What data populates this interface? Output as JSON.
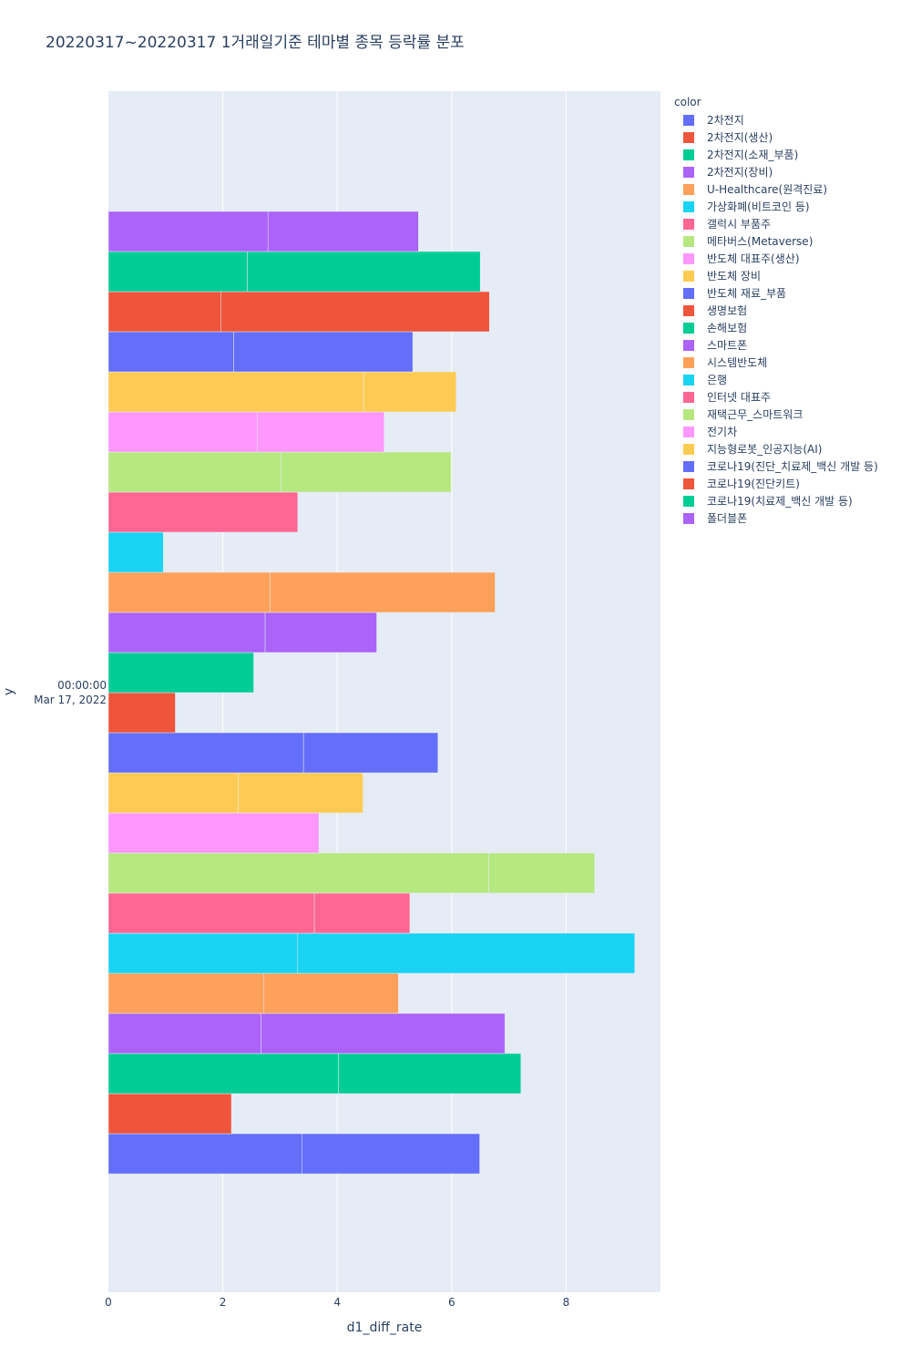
{
  "chart_data": {
    "type": "bar",
    "orientation": "horizontal",
    "barmode": "group",
    "title": "20220317~20220317 1거래일기준 테마별 종목 등락률 분포",
    "xlabel": "d1_diff_rate",
    "ylabel": "y",
    "xlim": [
      0,
      9.65
    ],
    "x_ticks": [
      "0",
      "2",
      "4",
      "6",
      "8"
    ],
    "x_tick_values": [
      0,
      2,
      4,
      6,
      8
    ],
    "y_category": "00:00:00\nMar 17, 2022",
    "y_tick_line1": "00:00:00",
    "y_tick_line2": "Mar 17, 2022",
    "legend_title": "color",
    "grid": true,
    "legend_position": "right",
    "plot_bg": "#e5ecf6",
    "series": [
      {
        "name": "2차전지",
        "color": "#636efa",
        "values": [
          3.38,
          3.11
        ]
      },
      {
        "name": "2차전지(생산)",
        "color": "#EF553B",
        "values": [
          2.15
        ]
      },
      {
        "name": "2차전지(소재_부품)",
        "color": "#00cc96",
        "values": [
          4.02,
          3.19
        ]
      },
      {
        "name": "2차전지(장비)",
        "color": "#ab63fa",
        "values": [
          2.67,
          4.26
        ]
      },
      {
        "name": "U-Healthcare(원격진료)",
        "color": "#FFA15A",
        "values": [
          2.72,
          2.35
        ]
      },
      {
        "name": "가상화폐(비트코인 등)",
        "color": "#19d3f3",
        "values": [
          3.31,
          5.89
        ]
      },
      {
        "name": "갤럭시 부품주",
        "color": "#FF6692",
        "values": [
          3.6,
          1.67
        ]
      },
      {
        "name": "메타버스(Metaverse)",
        "color": "#B6E880",
        "values": [
          6.65,
          1.85
        ]
      },
      {
        "name": "반도체 대표주(생산)",
        "color": "#FF97FF",
        "values": [
          3.68
        ]
      },
      {
        "name": "반도체 장비",
        "color": "#FECB52",
        "values": [
          2.27,
          2.18
        ]
      },
      {
        "name": "반도체 재료_부품",
        "color": "#636efa",
        "values": [
          3.41,
          2.35
        ]
      },
      {
        "name": "생명보험",
        "color": "#EF553B",
        "values": [
          1.17
        ]
      },
      {
        "name": "손해보험",
        "color": "#00cc96",
        "values": [
          2.54
        ]
      },
      {
        "name": "스마트폰",
        "color": "#ab63fa",
        "values": [
          2.74,
          1.95
        ]
      },
      {
        "name": "시스템반도체",
        "color": "#FFA15A",
        "values": [
          2.83,
          3.93
        ]
      },
      {
        "name": "은행",
        "color": "#19d3f3",
        "values": [
          0.96
        ]
      },
      {
        "name": "인터넷 대표주",
        "color": "#FF6692",
        "values": [
          3.31
        ]
      },
      {
        "name": "재택근무_스마트워크",
        "color": "#B6E880",
        "values": [
          3.02,
          2.97
        ]
      },
      {
        "name": "전기차",
        "color": "#FF97FF",
        "values": [
          2.6,
          2.22
        ]
      },
      {
        "name": "지능형로봇_인공지능(AI)",
        "color": "#FECB52",
        "values": [
          4.46,
          1.62
        ]
      },
      {
        "name": "코로나19(진단_치료제_백신 개발 등)",
        "color": "#636efa",
        "values": [
          2.19,
          3.13
        ]
      },
      {
        "name": "코로나19(진단키트)",
        "color": "#EF553B",
        "values": [
          1.97,
          4.69
        ]
      },
      {
        "name": "코로나19(치료제_백신 개발 등)",
        "color": "#00cc96",
        "values": [
          2.43,
          4.07
        ]
      },
      {
        "name": "폴더블폰",
        "color": "#ab63fa",
        "values": [
          2.79,
          2.63
        ]
      }
    ]
  }
}
